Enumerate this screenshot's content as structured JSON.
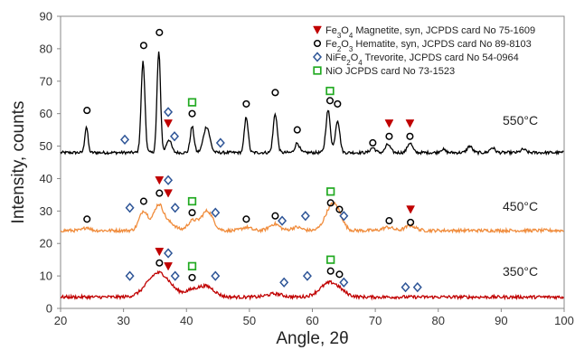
{
  "chart_data": {
    "type": "line",
    "xlabel": "Angle, 2θ",
    "ylabel": "Intensity, counts",
    "xlim": [
      20,
      100
    ],
    "ylim": [
      0,
      90
    ],
    "x_ticks": [
      20,
      30,
      40,
      50,
      60,
      70,
      80,
      90,
      100
    ],
    "y_ticks": [
      0,
      10,
      20,
      30,
      40,
      50,
      60,
      70,
      80,
      90
    ],
    "grid": false,
    "legend_position": "top-right",
    "legend": [
      {
        "marker": "triangle-down",
        "color": "#c00000",
        "text": "Fe3O4 Magnetite, syn, JCPDS card No 75-1609"
      },
      {
        "marker": "circle",
        "color": "#000000",
        "text": "Fe2O3 Hematite, syn, JCPDS card No 89-8103"
      },
      {
        "marker": "diamond",
        "color": "#2e5597",
        "text": "NiFe2O4 Trevorite, JCPDS card No 54-0964"
      },
      {
        "marker": "square",
        "color": "#22aa22",
        "text": "NiO JCPDS card No 73-1523"
      }
    ],
    "series": [
      {
        "temperature_label": "550°C",
        "color": "#000000",
        "baseline": 48,
        "peaks": [
          {
            "x": 24.1,
            "h": 8,
            "w": 0.25
          },
          {
            "x": 33.1,
            "h": 28,
            "w": 0.3
          },
          {
            "x": 35.6,
            "h": 31,
            "w": 0.28
          },
          {
            "x": 37.2,
            "h": 4,
            "w": 0.4
          },
          {
            "x": 40.9,
            "h": 8,
            "w": 0.3
          },
          {
            "x": 43.2,
            "h": 8,
            "w": 0.5
          },
          {
            "x": 49.5,
            "h": 11,
            "w": 0.3
          },
          {
            "x": 54.1,
            "h": 12,
            "w": 0.32
          },
          {
            "x": 57.6,
            "h": 3,
            "w": 0.35
          },
          {
            "x": 62.5,
            "h": 13,
            "w": 0.35
          },
          {
            "x": 64.0,
            "h": 10,
            "w": 0.35
          },
          {
            "x": 69.6,
            "h": 1.5,
            "w": 0.4
          },
          {
            "x": 72.0,
            "h": 2.5,
            "w": 0.4
          },
          {
            "x": 75.5,
            "h": 3,
            "w": 0.4
          },
          {
            "x": 80.7,
            "h": 1,
            "w": 0.4
          },
          {
            "x": 85.0,
            "h": 2,
            "w": 0.4
          },
          {
            "x": 88.6,
            "h": 1.5,
            "w": 0.4
          },
          {
            "x": 93.5,
            "h": 1,
            "w": 0.4
          }
        ],
        "markers": [
          {
            "type": "circle",
            "x": 24.2,
            "y": 61
          },
          {
            "type": "diamond",
            "x": 30.2,
            "y": 52
          },
          {
            "type": "circle",
            "x": 33.2,
            "y": 81
          },
          {
            "type": "circle",
            "x": 35.7,
            "y": 85
          },
          {
            "type": "diamond",
            "x": 37.1,
            "y": 60.5
          },
          {
            "type": "triangle-down",
            "x": 37.1,
            "y": 57
          },
          {
            "type": "diamond",
            "x": 38.1,
            "y": 53
          },
          {
            "type": "square",
            "x": 40.9,
            "y": 63.5
          },
          {
            "type": "circle",
            "x": 40.9,
            "y": 60
          },
          {
            "type": "diamond",
            "x": 45.4,
            "y": 51
          },
          {
            "type": "circle",
            "x": 49.5,
            "y": 63
          },
          {
            "type": "circle",
            "x": 54.1,
            "y": 66.5
          },
          {
            "type": "circle",
            "x": 57.6,
            "y": 55
          },
          {
            "type": "square",
            "x": 62.8,
            "y": 67
          },
          {
            "type": "circle",
            "x": 62.8,
            "y": 64
          },
          {
            "type": "circle",
            "x": 64.0,
            "y": 63
          },
          {
            "type": "circle",
            "x": 69.6,
            "y": 51
          },
          {
            "type": "triangle-down",
            "x": 72.2,
            "y": 57
          },
          {
            "type": "circle",
            "x": 72.2,
            "y": 53
          },
          {
            "type": "triangle-down",
            "x": 75.5,
            "y": 57
          },
          {
            "type": "circle",
            "x": 75.5,
            "y": 53
          }
        ]
      },
      {
        "temperature_label": "450°C",
        "color": "#f08c3c",
        "baseline": 24,
        "peaks": [
          {
            "x": 24.2,
            "h": 1,
            "w": 0.5
          },
          {
            "x": 33.2,
            "h": 6,
            "w": 0.7
          },
          {
            "x": 35.6,
            "h": 8,
            "w": 0.8
          },
          {
            "x": 37.5,
            "h": 2,
            "w": 0.8
          },
          {
            "x": 41.0,
            "h": 3,
            "w": 0.8
          },
          {
            "x": 43.3,
            "h": 6,
            "w": 0.9
          },
          {
            "x": 49.5,
            "h": 1,
            "w": 0.7
          },
          {
            "x": 54.0,
            "h": 2,
            "w": 0.8
          },
          {
            "x": 57.5,
            "h": 1,
            "w": 0.8
          },
          {
            "x": 63.0,
            "h": 7,
            "w": 1.0
          },
          {
            "x": 64.2,
            "h": 3,
            "w": 0.8
          },
          {
            "x": 72.0,
            "h": 1,
            "w": 0.8
          },
          {
            "x": 75.6,
            "h": 1.5,
            "w": 0.8
          }
        ],
        "markers": [
          {
            "type": "circle",
            "x": 24.2,
            "y": 27.5
          },
          {
            "type": "diamond",
            "x": 31.0,
            "y": 31
          },
          {
            "type": "circle",
            "x": 33.2,
            "y": 33
          },
          {
            "type": "triangle-down",
            "x": 35.7,
            "y": 39.5
          },
          {
            "type": "circle",
            "x": 35.7,
            "y": 35.5
          },
          {
            "type": "diamond",
            "x": 37.1,
            "y": 39.5
          },
          {
            "type": "triangle-down",
            "x": 37.1,
            "y": 35.5
          },
          {
            "type": "diamond",
            "x": 38.2,
            "y": 31
          },
          {
            "type": "square",
            "x": 40.9,
            "y": 33
          },
          {
            "type": "circle",
            "x": 40.9,
            "y": 29.5
          },
          {
            "type": "diamond",
            "x": 44.6,
            "y": 29.5
          },
          {
            "type": "circle",
            "x": 49.5,
            "y": 27.5
          },
          {
            "type": "circle",
            "x": 54.1,
            "y": 28.5
          },
          {
            "type": "diamond",
            "x": 55.2,
            "y": 27
          },
          {
            "type": "diamond",
            "x": 58.9,
            "y": 28.5
          },
          {
            "type": "square",
            "x": 62.9,
            "y": 36
          },
          {
            "type": "circle",
            "x": 62.9,
            "y": 32.5
          },
          {
            "type": "circle",
            "x": 64.3,
            "y": 30.5
          },
          {
            "type": "diamond",
            "x": 65.0,
            "y": 28.5
          },
          {
            "type": "circle",
            "x": 72.2,
            "y": 27
          },
          {
            "type": "triangle-down",
            "x": 75.6,
            "y": 30.5
          },
          {
            "type": "circle",
            "x": 75.6,
            "y": 26.5
          }
        ]
      },
      {
        "temperature_label": "350°C",
        "color": "#c00000",
        "baseline": 3.5,
        "peaks": [
          {
            "x": 35.6,
            "h": 7.5,
            "w": 1.8
          },
          {
            "x": 41.0,
            "h": 2,
            "w": 1.2
          },
          {
            "x": 43.3,
            "h": 3,
            "w": 1.2
          },
          {
            "x": 54.0,
            "h": 1,
            "w": 1.2
          },
          {
            "x": 62.9,
            "h": 4.5,
            "w": 1.6
          }
        ],
        "markers": [
          {
            "type": "diamond",
            "x": 31.0,
            "y": 10
          },
          {
            "type": "triangle-down",
            "x": 35.7,
            "y": 17.5
          },
          {
            "type": "circle",
            "x": 35.7,
            "y": 14
          },
          {
            "type": "diamond",
            "x": 37.1,
            "y": 17
          },
          {
            "type": "triangle-down",
            "x": 37.1,
            "y": 13
          },
          {
            "type": "diamond",
            "x": 38.2,
            "y": 10
          },
          {
            "type": "square",
            "x": 40.9,
            "y": 13
          },
          {
            "type": "circle",
            "x": 40.9,
            "y": 9.5
          },
          {
            "type": "diamond",
            "x": 44.6,
            "y": 10
          },
          {
            "type": "diamond",
            "x": 55.5,
            "y": 8
          },
          {
            "type": "diamond",
            "x": 59.2,
            "y": 10
          },
          {
            "type": "square",
            "x": 62.9,
            "y": 15
          },
          {
            "type": "circle",
            "x": 62.9,
            "y": 11.5
          },
          {
            "type": "circle",
            "x": 64.3,
            "y": 10.5
          },
          {
            "type": "diamond",
            "x": 65.0,
            "y": 8
          },
          {
            "type": "diamond",
            "x": 74.8,
            "y": 6.5
          },
          {
            "type": "diamond",
            "x": 76.7,
            "y": 6.5
          }
        ]
      }
    ]
  }
}
